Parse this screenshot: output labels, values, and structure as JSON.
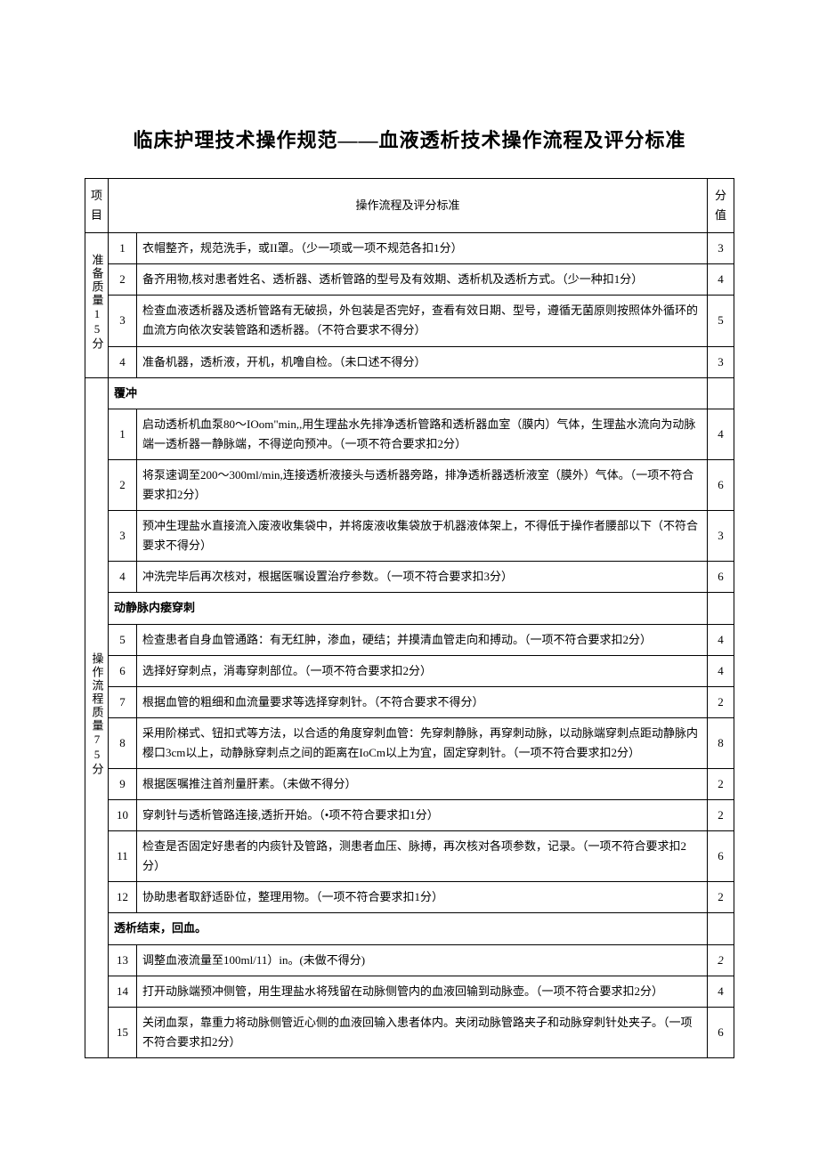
{
  "title": "临床护理技术操作规范——血液透析技术操作流程及评分标准",
  "headers": {
    "section": "项目",
    "criteria": "操作流程及评分标准",
    "score": "分值"
  },
  "sections": [
    {
      "label": "准备质量15分",
      "rows": [
        {
          "num": "1",
          "text": "衣帽整齐，规范洗手，或II罩。（少一项或一项不规范各扣1分）",
          "score": "3",
          "header": false
        },
        {
          "num": "2",
          "text": "备齐用物,核对患者姓名、透析器、透析管路的型号及有效期、透析机及透析方式。（少一种扣1分）",
          "score": "4",
          "header": false
        },
        {
          "num": "3",
          "text": "检查血液透析器及透析管路有无破损，外包装是否完好，查看有效日期、型号，遵循无菌原则按照体外循环的血流方向依次安装管路和透析器。（不符合要求不得分）",
          "score": "5",
          "header": false
        },
        {
          "num": "4",
          "text": "准备机器，透析液，开机，机噜自检。（未口述不得分）",
          "score": "3",
          "header": false
        }
      ]
    },
    {
      "label": "操作流程质量75分",
      "rows": [
        {
          "num": "",
          "text": "覆冲",
          "score": "",
          "header": true
        },
        {
          "num": "1",
          "text": "启动透析机血泵80～IOom\"min,,用生理盐水先排净透析管路和透析器血室（膜内）气体，生理盐水流向为动脉端一透析器一静脉端，不得逆向预冲。（一项不符合要求扣2分）",
          "score": "4",
          "header": false,
          "dashed": true
        },
        {
          "num": "2",
          "text": "将泵速调至200～300ml/min,连接透析液接头与透析器旁路，排净透析器透析液室（膜外）气体。（一项不符合要求扣2分）",
          "score": "6",
          "header": false,
          "dashed": true
        },
        {
          "num": "3",
          "text": "预冲生理盐水直接流入废液收集袋中，并将废液收集袋放于机器液体架上，不得低于操作者腰部以下（不符合要求不得分）",
          "score": "3",
          "header": false,
          "dashed": true
        },
        {
          "num": "4",
          "text": "冲洗完毕后再次核对，根据医嘱设置治疗参数。（一项不符合要求扣3分）",
          "score": "6",
          "header": false,
          "dashed": true
        },
        {
          "num": "",
          "text": "动静脉内瘘穿刺",
          "score": "",
          "header": true
        },
        {
          "num": "5",
          "text": "检查患者自身血管通路：有无红肿，渗血，硬结；并摸清血管走向和搏动。（一项不符合要求扣2分）",
          "score": "4",
          "header": false,
          "dashed": true
        },
        {
          "num": "6",
          "text": "选择好穿刺点，消毒穿刺部位。（一项不符合要求扣2分）",
          "score": "4",
          "header": false,
          "dashed": true
        },
        {
          "num": "7",
          "text": "根据血管的粗细和血流量要求等选择穿刺针。（不符合要求不得分）",
          "score": "2",
          "header": false,
          "dashed": true
        },
        {
          "num": "8",
          "text": "采用阶梯式、钮扣式等方法，以合适的角度穿刺血管：先穿刺静脉，再穿刺动脉，以动脉端穿刺点距动静脉内樱口3cm以上，动静脉穿刺点之间的距离在IoCm以上为宜，固定穿刺针。（一项不符合要求扣2分）",
          "score": "8",
          "header": false,
          "dashed": true
        },
        {
          "num": "9",
          "text": "根据医嘱推注首剂量肝素。（未做不得分）",
          "score": "2",
          "header": false,
          "dashed": true
        },
        {
          "num": "10",
          "text": "穿刺针与透析管路连接,透折开始。（•项不符合要求扣1分）",
          "score": "2",
          "header": false,
          "dashed": true
        },
        {
          "num": "11",
          "text": "检查是否固定好患者的内痰针及管路，测患者血压、脉搏，再次核对各项参数，记录。（一项不符合要求扣2分）",
          "score": "6",
          "header": false,
          "dashed": true
        },
        {
          "num": "12",
          "text": "协助患者取舒适卧位，整理用物。（一项不符合要求扣1分）",
          "score": "2",
          "header": false,
          "dashed": true
        },
        {
          "num": "",
          "text": "透析结束，回血。",
          "score": "",
          "header": true
        },
        {
          "num": "13",
          "text": "调整血液流量至100ml/11）in。(未做不得分)",
          "score": "2",
          "header": false,
          "dashed": true,
          "italic_score": true
        },
        {
          "num": "14",
          "text": "打开动脉端预冲侧管，用生理盐水将残留在动脉侧管内的血液回输到动脉壶。（一项不符合要求扣2分）",
          "score": "4",
          "header": false,
          "dashed": true
        },
        {
          "num": "15",
          "text": "关闭血泵，靠重力将动脉侧管近心侧的血液回输入患者体内。夹闭动脉管路夹子和动脉穿刺针处夹子。（一项不符合要求扣2分）",
          "score": "6",
          "header": false,
          "dashed": true
        }
      ]
    }
  ]
}
